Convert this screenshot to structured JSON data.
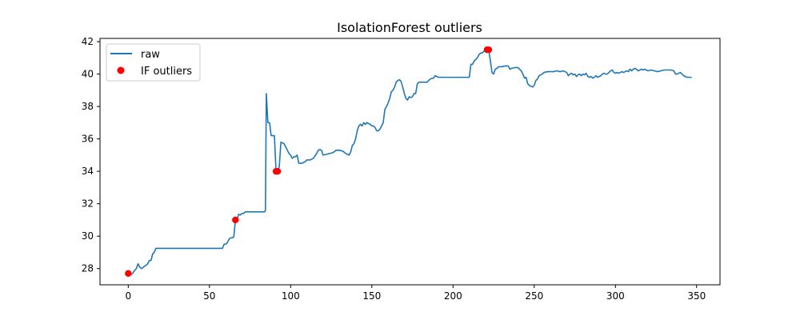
{
  "chart_data": {
    "type": "line",
    "title": "IsolationForest outliers",
    "xlabel": "",
    "ylabel": "",
    "xlim": [
      -17.4,
      364.4
    ],
    "ylim": [
      27.0,
      42.2
    ],
    "xticks": [
      0,
      50,
      100,
      150,
      200,
      250,
      300,
      350
    ],
    "yticks": [
      28,
      30,
      32,
      34,
      36,
      38,
      40,
      42
    ],
    "grid": false,
    "legend_position": "upper-left",
    "series": [
      {
        "name": "raw",
        "type": "line",
        "color": "#1f77b4",
        "points": [
          [
            0,
            27.7
          ],
          [
            1,
            27.7
          ],
          [
            2,
            27.65
          ],
          [
            3,
            27.75
          ],
          [
            4,
            27.9
          ],
          [
            5,
            28.0
          ],
          [
            6,
            28.3
          ],
          [
            7,
            28.1
          ],
          [
            8,
            28.0
          ],
          [
            9,
            28.05
          ],
          [
            10,
            28.15
          ],
          [
            11,
            28.2
          ],
          [
            12,
            28.3
          ],
          [
            13,
            28.5
          ],
          [
            14,
            28.5
          ],
          [
            15,
            28.9
          ],
          [
            16,
            29.0
          ],
          [
            17,
            29.25
          ],
          [
            20,
            29.25
          ],
          [
            30,
            29.25
          ],
          [
            40,
            29.25
          ],
          [
            50,
            29.25
          ],
          [
            58,
            29.25
          ],
          [
            59,
            29.5
          ],
          [
            60,
            29.5
          ],
          [
            61,
            29.6
          ],
          [
            62,
            29.8
          ],
          [
            63,
            29.9
          ],
          [
            64,
            29.9
          ],
          [
            65,
            29.95
          ],
          [
            66,
            31.0
          ],
          [
            67,
            31.0
          ],
          [
            68,
            31.35
          ],
          [
            69,
            31.3
          ],
          [
            70,
            31.4
          ],
          [
            71,
            31.4
          ],
          [
            72,
            31.5
          ],
          [
            75,
            31.5
          ],
          [
            80,
            31.5
          ],
          [
            84,
            31.5
          ],
          [
            84.5,
            31.6
          ],
          [
            85,
            38.8
          ],
          [
            86,
            37.0
          ],
          [
            87,
            37.0
          ],
          [
            88,
            36.2
          ],
          [
            89,
            36.2
          ],
          [
            90,
            36.2
          ],
          [
            91,
            34.0
          ],
          [
            92,
            34.0
          ],
          [
            93,
            34.3
          ],
          [
            94,
            35.8
          ],
          [
            95,
            35.75
          ],
          [
            96,
            35.7
          ],
          [
            97,
            35.5
          ],
          [
            98,
            35.3
          ],
          [
            99,
            35.1
          ],
          [
            100,
            35.0
          ],
          [
            101,
            34.8
          ],
          [
            102,
            34.9
          ],
          [
            103,
            34.9
          ],
          [
            104,
            35.0
          ],
          [
            105,
            34.5
          ],
          [
            106,
            34.5
          ],
          [
            107,
            34.5
          ],
          [
            108,
            34.55
          ],
          [
            109,
            34.6
          ],
          [
            110,
            34.7
          ],
          [
            112,
            34.7
          ],
          [
            114,
            34.8
          ],
          [
            116,
            35.1
          ],
          [
            117,
            35.3
          ],
          [
            118,
            35.35
          ],
          [
            119,
            35.3
          ],
          [
            120,
            35.0
          ],
          [
            122,
            35.05
          ],
          [
            124,
            35.1
          ],
          [
            126,
            35.15
          ],
          [
            128,
            35.3
          ],
          [
            130,
            35.3
          ],
          [
            132,
            35.25
          ],
          [
            134,
            35.1
          ],
          [
            136,
            35.0
          ],
          [
            137,
            35.2
          ],
          [
            138,
            35.6
          ],
          [
            139,
            35.7
          ],
          [
            140,
            36.0
          ],
          [
            141,
            36.5
          ],
          [
            142,
            36.8
          ],
          [
            143,
            36.9
          ],
          [
            144,
            36.8
          ],
          [
            145,
            37.0
          ],
          [
            146,
            36.9
          ],
          [
            147,
            37.0
          ],
          [
            148,
            36.95
          ],
          [
            149,
            36.9
          ],
          [
            150,
            36.8
          ],
          [
            151,
            36.8
          ],
          [
            152,
            36.7
          ],
          [
            153,
            36.5
          ],
          [
            154,
            36.5
          ],
          [
            155,
            36.6
          ],
          [
            156,
            36.8
          ],
          [
            157,
            37.0
          ],
          [
            158,
            37.8
          ],
          [
            159,
            38.0
          ],
          [
            160,
            38.2
          ],
          [
            161,
            38.5
          ],
          [
            162,
            38.9
          ],
          [
            163,
            39.0
          ],
          [
            164,
            39.2
          ],
          [
            165,
            39.5
          ],
          [
            166,
            39.6
          ],
          [
            167,
            39.65
          ],
          [
            168,
            39.55
          ],
          [
            169,
            39.2
          ],
          [
            170,
            38.8
          ],
          [
            171,
            38.5
          ],
          [
            172,
            38.4
          ],
          [
            173,
            38.6
          ],
          [
            174,
            38.55
          ],
          [
            175,
            38.6
          ],
          [
            176,
            38.8
          ],
          [
            177,
            38.8
          ],
          [
            178,
            39.4
          ],
          [
            179,
            39.5
          ],
          [
            180,
            39.5
          ],
          [
            182,
            39.5
          ],
          [
            184,
            39.5
          ],
          [
            186,
            39.7
          ],
          [
            188,
            39.75
          ],
          [
            189,
            39.9
          ],
          [
            190,
            39.85
          ],
          [
            191,
            39.8
          ],
          [
            195,
            39.8
          ],
          [
            200,
            39.8
          ],
          [
            205,
            39.8
          ],
          [
            210,
            39.8
          ],
          [
            211,
            40.6
          ],
          [
            212,
            40.6
          ],
          [
            213,
            40.8
          ],
          [
            214,
            40.9
          ],
          [
            215,
            41.0
          ],
          [
            216,
            41.2
          ],
          [
            217,
            41.3
          ],
          [
            218,
            41.3
          ],
          [
            219,
            41.4
          ],
          [
            220,
            41.5
          ],
          [
            221,
            41.5
          ],
          [
            222,
            41.5
          ],
          [
            223,
            40.8
          ],
          [
            224,
            40.1
          ],
          [
            225,
            40.0
          ],
          [
            226,
            40.3
          ],
          [
            227,
            40.35
          ],
          [
            228,
            40.45
          ],
          [
            230,
            40.45
          ],
          [
            232,
            40.5
          ],
          [
            234,
            40.5
          ],
          [
            235,
            40.3
          ],
          [
            236,
            40.35
          ],
          [
            238,
            40.4
          ],
          [
            240,
            40.4
          ],
          [
            241,
            40.3
          ],
          [
            242,
            40.2
          ],
          [
            243,
            40.0
          ],
          [
            244,
            39.75
          ],
          [
            245,
            39.8
          ],
          [
            246,
            39.4
          ],
          [
            247,
            39.3
          ],
          [
            248,
            39.25
          ],
          [
            249,
            39.2
          ],
          [
            250,
            39.3
          ],
          [
            251,
            39.6
          ],
          [
            252,
            39.7
          ],
          [
            253,
            39.9
          ],
          [
            254,
            39.95
          ],
          [
            255,
            40.0
          ],
          [
            256,
            40.1
          ],
          [
            258,
            40.15
          ],
          [
            260,
            40.15
          ],
          [
            262,
            40.15
          ],
          [
            264,
            40.2
          ],
          [
            266,
            40.15
          ],
          [
            268,
            40.2
          ],
          [
            270,
            40.1
          ],
          [
            271,
            39.9
          ],
          [
            272,
            40.0
          ],
          [
            273,
            40.05
          ],
          [
            274,
            39.95
          ],
          [
            275,
            40.0
          ],
          [
            276,
            39.85
          ],
          [
            277,
            39.95
          ],
          [
            278,
            40.0
          ],
          [
            279,
            39.9
          ],
          [
            280,
            40.0
          ],
          [
            281,
            39.95
          ],
          [
            282,
            40.05
          ],
          [
            283,
            39.85
          ],
          [
            284,
            39.8
          ],
          [
            285,
            39.85
          ],
          [
            286,
            39.75
          ],
          [
            287,
            39.8
          ],
          [
            288,
            39.9
          ],
          [
            289,
            39.8
          ],
          [
            290,
            39.85
          ],
          [
            291,
            39.9
          ],
          [
            292,
            40.0
          ],
          [
            293,
            40.05
          ],
          [
            294,
            40.0
          ],
          [
            295,
            40.0
          ],
          [
            296,
            40.1
          ],
          [
            297,
            40.2
          ],
          [
            298,
            40.25
          ],
          [
            299,
            40.1
          ],
          [
            300,
            40.05
          ],
          [
            301,
            40.1
          ],
          [
            302,
            40.05
          ],
          [
            303,
            40.1
          ],
          [
            304,
            40.15
          ],
          [
            305,
            40.1
          ],
          [
            306,
            40.15
          ],
          [
            307,
            40.2
          ],
          [
            308,
            40.15
          ],
          [
            309,
            40.3
          ],
          [
            310,
            40.2
          ],
          [
            311,
            40.3
          ],
          [
            312,
            40.35
          ],
          [
            313,
            40.3
          ],
          [
            314,
            40.2
          ],
          [
            315,
            40.25
          ],
          [
            316,
            40.3
          ],
          [
            317,
            40.25
          ],
          [
            318,
            40.3
          ],
          [
            319,
            40.25
          ],
          [
            320,
            40.2
          ],
          [
            322,
            40.25
          ],
          [
            324,
            40.2
          ],
          [
            326,
            40.15
          ],
          [
            328,
            40.2
          ],
          [
            330,
            40.25
          ],
          [
            332,
            40.25
          ],
          [
            334,
            40.25
          ],
          [
            336,
            40.2
          ],
          [
            337,
            40.0
          ],
          [
            338,
            40.0
          ],
          [
            339,
            40.05
          ],
          [
            340,
            40.1
          ],
          [
            341,
            40.0
          ],
          [
            342,
            39.9
          ],
          [
            343,
            39.85
          ],
          [
            344,
            39.8
          ],
          [
            345,
            39.8
          ],
          [
            346,
            39.8
          ],
          [
            347,
            39.8
          ]
        ]
      },
      {
        "name": "IF outliers",
        "type": "scatter",
        "color": "#ff0000",
        "points": [
          [
            0,
            27.7
          ],
          [
            66,
            31.0
          ],
          [
            91,
            34.0
          ],
          [
            92,
            34.0
          ],
          [
            221,
            41.5
          ],
          [
            222,
            41.5
          ]
        ]
      }
    ]
  }
}
